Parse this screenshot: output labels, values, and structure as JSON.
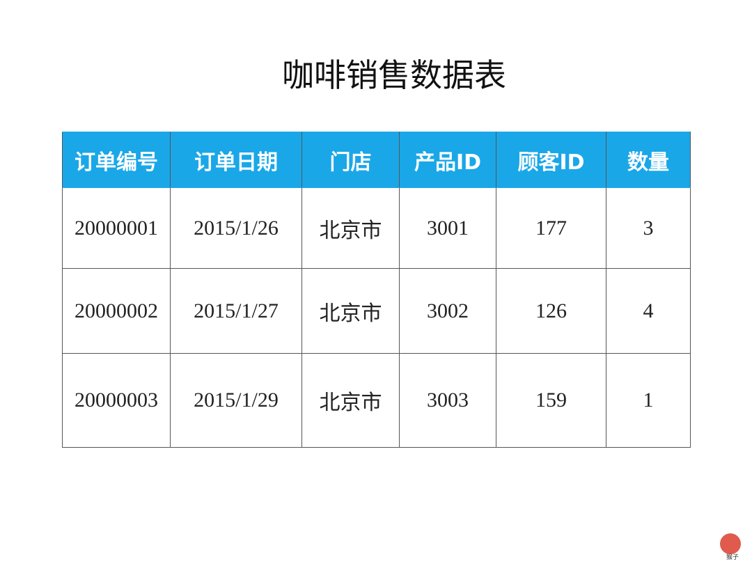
{
  "title": "咖啡销售数据表",
  "table": {
    "header": [
      "订单编号",
      "订单日期",
      "门店",
      "产品ID",
      "顾客ID",
      "数量"
    ],
    "rows": [
      [
        "20000001",
        "2015/1/26",
        "北京市",
        "3001",
        "177",
        "3"
      ],
      [
        "20000002",
        "2015/1/27",
        "北京市",
        "3002",
        "126",
        "4"
      ],
      [
        "20000003",
        "2015/1/29",
        "北京市",
        "3003",
        "159",
        "1"
      ]
    ]
  },
  "logo": "猴子"
}
